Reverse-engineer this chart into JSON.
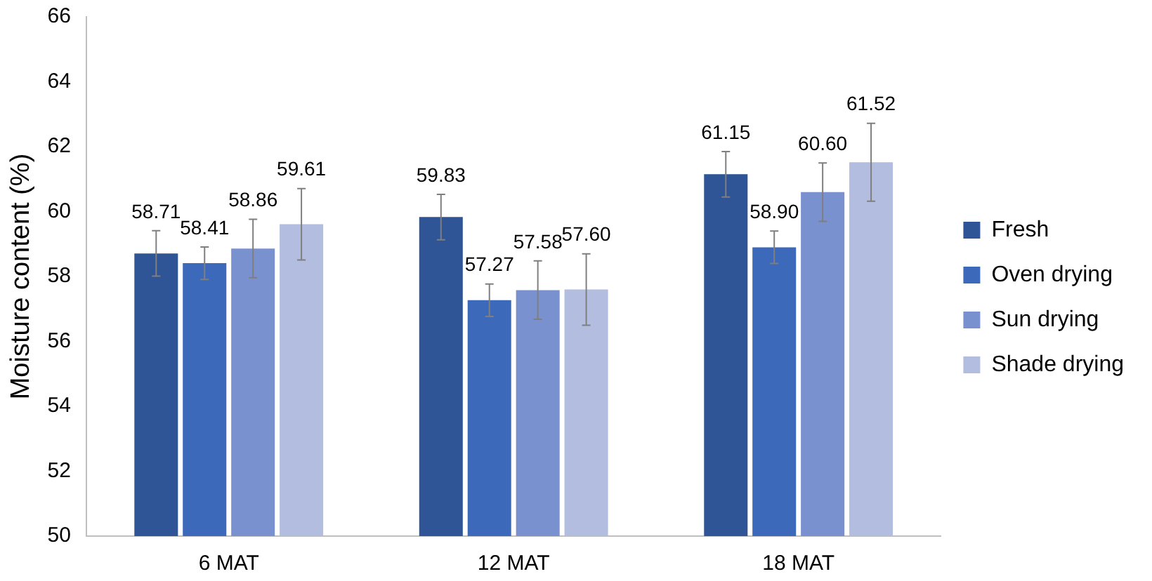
{
  "chart_data": {
    "type": "bar",
    "ylabel": "Moisture content (%)",
    "categories": [
      "6 MAT",
      "12 MAT",
      "18 MAT"
    ],
    "series": [
      {
        "name": "Fresh",
        "color": "#2f5597",
        "values": [
          58.71,
          59.83,
          61.15
        ],
        "errors": [
          0.7,
          0.7,
          0.7
        ],
        "value_labels": [
          "58.71",
          "59.83",
          "61.15"
        ]
      },
      {
        "name": "Oven drying",
        "color": "#3d69bb",
        "values": [
          58.41,
          57.27,
          58.9
        ],
        "errors": [
          0.5,
          0.5,
          0.5
        ],
        "value_labels": [
          "58.41",
          "57.27",
          "58.90"
        ]
      },
      {
        "name": "Sun drying",
        "color": "#7a91cf",
        "values": [
          58.86,
          57.58,
          60.6
        ],
        "errors": [
          0.9,
          0.9,
          0.9
        ],
        "value_labels": [
          "58.86",
          "57.58",
          "60.60"
        ]
      },
      {
        "name": "Shade drying",
        "color": "#b3bde0",
        "values": [
          59.61,
          57.6,
          61.52
        ],
        "errors": [
          1.1,
          1.1,
          1.2
        ],
        "value_labels": [
          "59.61",
          "57.60",
          "61.52"
        ]
      }
    ],
    "ylim": [
      50,
      66
    ],
    "yticks": [
      50,
      52,
      54,
      56,
      58,
      60,
      62,
      64,
      66
    ],
    "grid": false,
    "legend": "right"
  }
}
